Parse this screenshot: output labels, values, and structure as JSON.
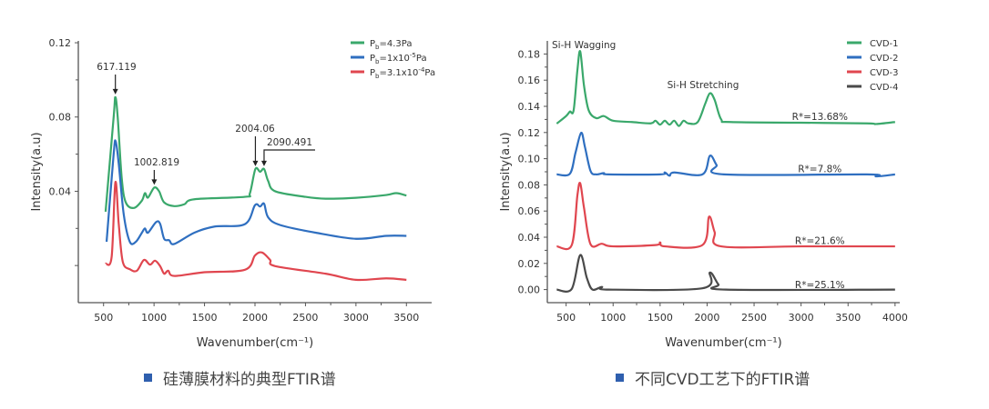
{
  "chart_data": [
    {
      "type": "line",
      "title": "",
      "xlabel": "Wavenumber(cm⁻¹)",
      "ylabel": "Intensity(a.u)",
      "xlim": [
        250,
        3750
      ],
      "ylim": [
        -0.02,
        0.121
      ],
      "xticks": [
        500,
        1000,
        1500,
        2000,
        2500,
        3000,
        3500
      ],
      "xtick_labels": [
        "500",
        "1000",
        "1500",
        "2000",
        "2500",
        "3000",
        "3500"
      ],
      "yticks": [
        0.0,
        0.04,
        0.08,
        0.12
      ],
      "ytick_labels": [
        "",
        "0.04",
        "0.08",
        "0.12"
      ],
      "legend_position": "top-right",
      "series": [
        {
          "name": "Pb=4.3Pa",
          "legend": {
            "main": "P",
            "sub": "b",
            "pre": "=4.3Pa",
            "sup": "",
            "post": ""
          },
          "color": "#3aa86b",
          "x": [
            520,
            600,
            617,
            640,
            680,
            720,
            800,
            880,
            910,
            940,
            1002,
            1050,
            1100,
            1200,
            1300,
            1400,
            1900,
            1950,
            2004,
            2050,
            2090,
            2130,
            2200,
            2500,
            2700,
            3000,
            3300,
            3400,
            3500
          ],
          "y": [
            0.029,
            0.08,
            0.0907,
            0.08,
            0.047,
            0.034,
            0.031,
            0.035,
            0.039,
            0.0366,
            0.042,
            0.04,
            0.034,
            0.032,
            0.033,
            0.0357,
            0.037,
            0.039,
            0.052,
            0.0505,
            0.052,
            0.0456,
            0.04,
            0.037,
            0.036,
            0.0365,
            0.038,
            0.039,
            0.0377
          ]
        },
        {
          "name": "Pb=1x10-5Pa",
          "legend": {
            "main": "P",
            "sub": "b",
            "pre": "=1x10",
            "sup": "-5",
            "post": "Pa"
          },
          "color": "#2f6fc0",
          "x": [
            530,
            600,
            620,
            650,
            700,
            760,
            820,
            880,
            910,
            940,
            1020,
            1060,
            1100,
            1150,
            1200,
            1400,
            1600,
            1900,
            2000,
            2050,
            2090,
            2130,
            2250,
            2600,
            3000,
            3300,
            3500
          ],
          "y": [
            0.0128,
            0.06,
            0.0669,
            0.055,
            0.0275,
            0.0128,
            0.0128,
            0.0177,
            0.02,
            0.0177,
            0.0234,
            0.0225,
            0.0144,
            0.0136,
            0.0116,
            0.0177,
            0.021,
            0.0223,
            0.0325,
            0.0318,
            0.0333,
            0.026,
            0.0218,
            0.0177,
            0.0144,
            0.016,
            0.016
          ]
        },
        {
          "name": "Pb=3.1x10-4Pa",
          "legend": {
            "main": "P",
            "sub": "b",
            "pre": "=3.1x10",
            "sup": "-4",
            "post": "Pa"
          },
          "color": "#e0464f",
          "x": [
            520,
            580,
            617,
            650,
            690,
            760,
            830,
            900,
            960,
            1010,
            1060,
            1100,
            1140,
            1200,
            1500,
            1900,
            2000,
            2070,
            2150,
            2200,
            2700,
            3000,
            3300,
            3500
          ],
          "y": [
            0.001,
            0.0046,
            0.0448,
            0.0226,
            0.0021,
            -0.002,
            -0.0028,
            0.003,
            0.0005,
            0.0026,
            -0.0003,
            -0.0044,
            -0.0028,
            -0.0056,
            -0.0036,
            -0.0023,
            0.0054,
            0.007,
            0.003,
            -0.0003,
            -0.0044,
            -0.0077,
            -0.0069,
            -0.0077
          ]
        }
      ],
      "annotations": [
        {
          "text": "617.119",
          "x": 617,
          "y": 0.0907
        },
        {
          "text": "1002.819",
          "x": 1002,
          "y": 0.042
        },
        {
          "text": "2004.06",
          "x": 2004,
          "y": 0.052
        },
        {
          "text": "2090.491",
          "x": 2090,
          "y": 0.052
        }
      ]
    },
    {
      "type": "line",
      "title": "",
      "xlabel": "Wavenumber(cm⁻¹)",
      "ylabel": "Intensity(a.u)",
      "xlim": [
        300,
        4050
      ],
      "ylim": [
        -0.01,
        0.19
      ],
      "xticks": [
        500,
        1000,
        1500,
        2000,
        2500,
        3000,
        3500,
        4000
      ],
      "xtick_labels": [
        "500",
        "1000",
        "1500",
        "2000",
        "2500",
        "3000",
        "3500",
        "4000"
      ],
      "yticks": [
        0.0,
        0.02,
        0.04,
        0.06,
        0.08,
        0.1,
        0.12,
        0.14,
        0.16,
        0.18
      ],
      "ytick_labels": [
        "0.00",
        "0.02",
        "0.04",
        "0.06",
        "0.08",
        "0.10",
        "0.12",
        "0.14",
        "0.16",
        "0.18"
      ],
      "legend_position": "top-right",
      "series": [
        {
          "name": "CVD-1",
          "color": "#3aa86b",
          "label": "R*=13.68%",
          "label_x": 3200,
          "label_y": 0.1325,
          "x": [
            400,
            500,
            540,
            580,
            620,
            650,
            690,
            740,
            820,
            900,
            1000,
            1200,
            1400,
            1450,
            1500,
            1550,
            1600,
            1650,
            1700,
            1750,
            1800,
            1900,
            1980,
            2030,
            2080,
            2150,
            2250,
            3000,
            3700,
            3800,
            4000
          ],
          "y": [
            0.1268,
            0.1326,
            0.136,
            0.137,
            0.1676,
            0.182,
            0.156,
            0.137,
            0.131,
            0.1326,
            0.129,
            0.128,
            0.127,
            0.129,
            0.126,
            0.129,
            0.126,
            0.129,
            0.125,
            0.129,
            0.127,
            0.128,
            0.142,
            0.15,
            0.145,
            0.13,
            0.128,
            0.1275,
            0.127,
            0.1265,
            0.128
          ]
        },
        {
          "name": "CVD-2",
          "color": "#2f6fc0",
          "label": "R*=7.8%",
          "label_x": 3200,
          "label_y": 0.0925,
          "x": [
            400,
            540,
            600,
            660,
            700,
            760,
            820,
            900,
            950,
            1500,
            1550,
            1600,
            1650,
            1950,
            2030,
            2100,
            2180,
            3700,
            3800,
            4000
          ],
          "y": [
            0.088,
            0.0885,
            0.1046,
            0.1198,
            0.109,
            0.0906,
            0.088,
            0.089,
            0.088,
            0.088,
            0.0895,
            0.087,
            0.0895,
            0.088,
            0.1022,
            0.0953,
            0.088,
            0.088,
            0.0865,
            0.088
          ]
        },
        {
          "name": "CVD-3",
          "color": "#e0464f",
          "label": "R*=21.6%",
          "label_x": 3200,
          "label_y": 0.0375,
          "x": [
            400,
            560,
            620,
            650,
            690,
            760,
            880,
            1000,
            1450,
            1500,
            1550,
            1950,
            2020,
            2080,
            2150,
            3000,
            4000
          ],
          "y": [
            0.033,
            0.034,
            0.072,
            0.0812,
            0.0626,
            0.0346,
            0.035,
            0.033,
            0.034,
            0.036,
            0.033,
            0.034,
            0.0556,
            0.044,
            0.033,
            0.033,
            0.033
          ]
        },
        {
          "name": "CVD-4",
          "color": "#4a4a4a",
          "label": "R*=25.1%",
          "label_x": 3200,
          "label_y": 0.004,
          "x": [
            400,
            560,
            650,
            720,
            780,
            880,
            950,
            1950,
            2030,
            2120,
            2200,
            4000
          ],
          "y": [
            0,
            0.0005,
            0.0264,
            0.009,
            0.0,
            0.002,
            0,
            0.001,
            0.013,
            0.004,
            0,
            0
          ]
        }
      ],
      "annotations": [
        {
          "text": "Si-H Wagging"
        },
        {
          "text": "Si-H Stretching"
        }
      ]
    }
  ],
  "captions": [
    "硅薄膜材料的典型FTIR谱",
    "不同CVD工艺下的FTIR谱"
  ]
}
